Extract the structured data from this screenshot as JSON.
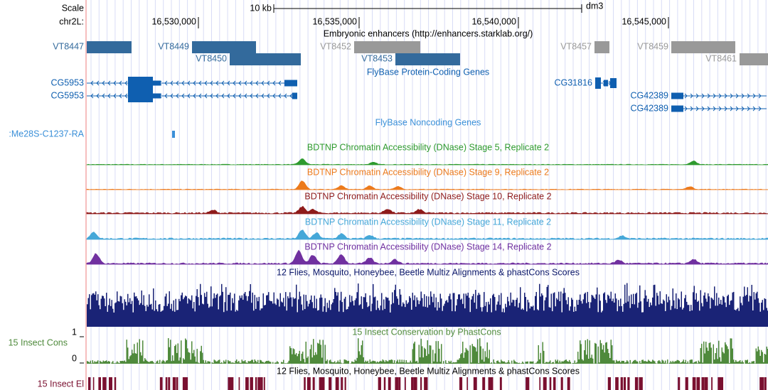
{
  "header": {
    "scale": "Scale",
    "scale_bar": "10 kb",
    "assembly": "dm3",
    "chrom": "chr2L:",
    "ticks": [
      "16,530,000",
      "16,535,000",
      "16,540,000",
      "16,545,000"
    ]
  },
  "enhancers": {
    "title": "Embryonic enhancers (http://enhancers.starklab.org/)",
    "items": [
      "VT8447",
      "VT8449",
      "VT8450",
      "VT8452",
      "VT8453",
      "VT8457",
      "VT8459",
      "VT8461"
    ]
  },
  "protein_genes": {
    "title": "FlyBase Protein-Coding Genes",
    "items": [
      "CG5953",
      "CG5953",
      "CG31816",
      "CG42389",
      "CG42389"
    ]
  },
  "noncoding_genes": {
    "title": "FlyBase Noncoding Genes",
    "items": [
      ":Me28S-C1237-RA"
    ]
  },
  "dnase": {
    "tracks": [
      "BDTNP Chromatin Accessibility (DNase) Stage 5, Replicate 2",
      "BDTNP Chromatin Accessibility (DNase) Stage 9, Replicate 2",
      "BDTNP Chromatin Accessibility (DNase) Stage 10, Replicate 2",
      "BDTNP Chromatin Accessibility (DNase) Stage 11, Replicate 2",
      "BDTNP Chromatin Accessibility (DNase) Stage 14, Replicate 2"
    ]
  },
  "multiz": {
    "title": "12 Flies, Mosquito, Honeybee, Beetle Multiz Alignments & phastCons Scores"
  },
  "phastcons": {
    "title": "15 Insect Conservation by PhastCons",
    "label": "15 Insect Cons",
    "max": "1",
    "min": "0"
  },
  "elements": {
    "title": "12 Flies, Mosquito, Honeybee, Beetle Multiz Alignments & phastCons Scores",
    "label": "15 Insect El"
  }
}
